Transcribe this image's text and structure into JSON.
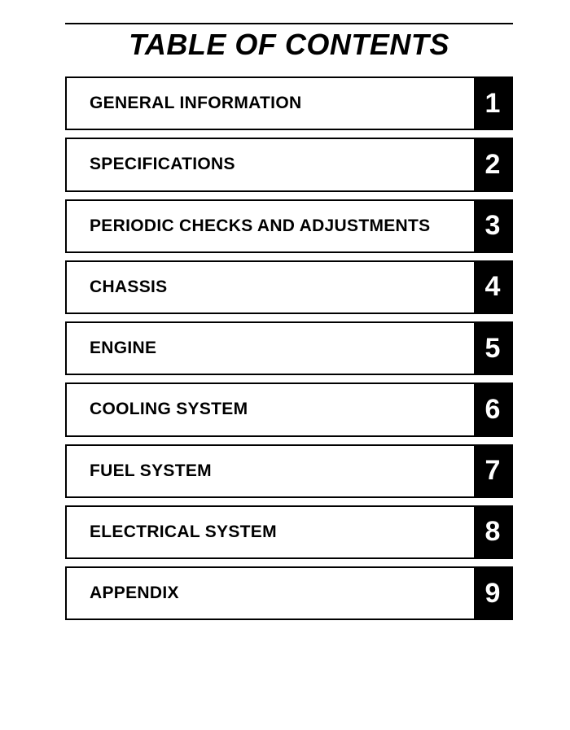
{
  "title": "TABLE OF CONTENTS",
  "items": [
    {
      "label": "GENERAL INFORMATION",
      "num": "1"
    },
    {
      "label": "SPECIFICATIONS",
      "num": "2"
    },
    {
      "label": "PERIODIC CHECKS AND ADJUSTMENTS",
      "num": "3"
    },
    {
      "label": "CHASSIS",
      "num": "4"
    },
    {
      "label": "ENGINE",
      "num": "5"
    },
    {
      "label": "COOLING SYSTEM",
      "num": "6"
    },
    {
      "label": "FUEL SYSTEM",
      "num": "7"
    },
    {
      "label": "ELECTRICAL SYSTEM",
      "num": "8"
    },
    {
      "label": "APPENDIX",
      "num": "9"
    }
  ],
  "style": {
    "row_border_color": "#000000",
    "num_bg": "#000000",
    "num_fg": "#ffffff",
    "title_fontsize": 36,
    "label_fontsize": 21,
    "num_fontsize": 34
  }
}
